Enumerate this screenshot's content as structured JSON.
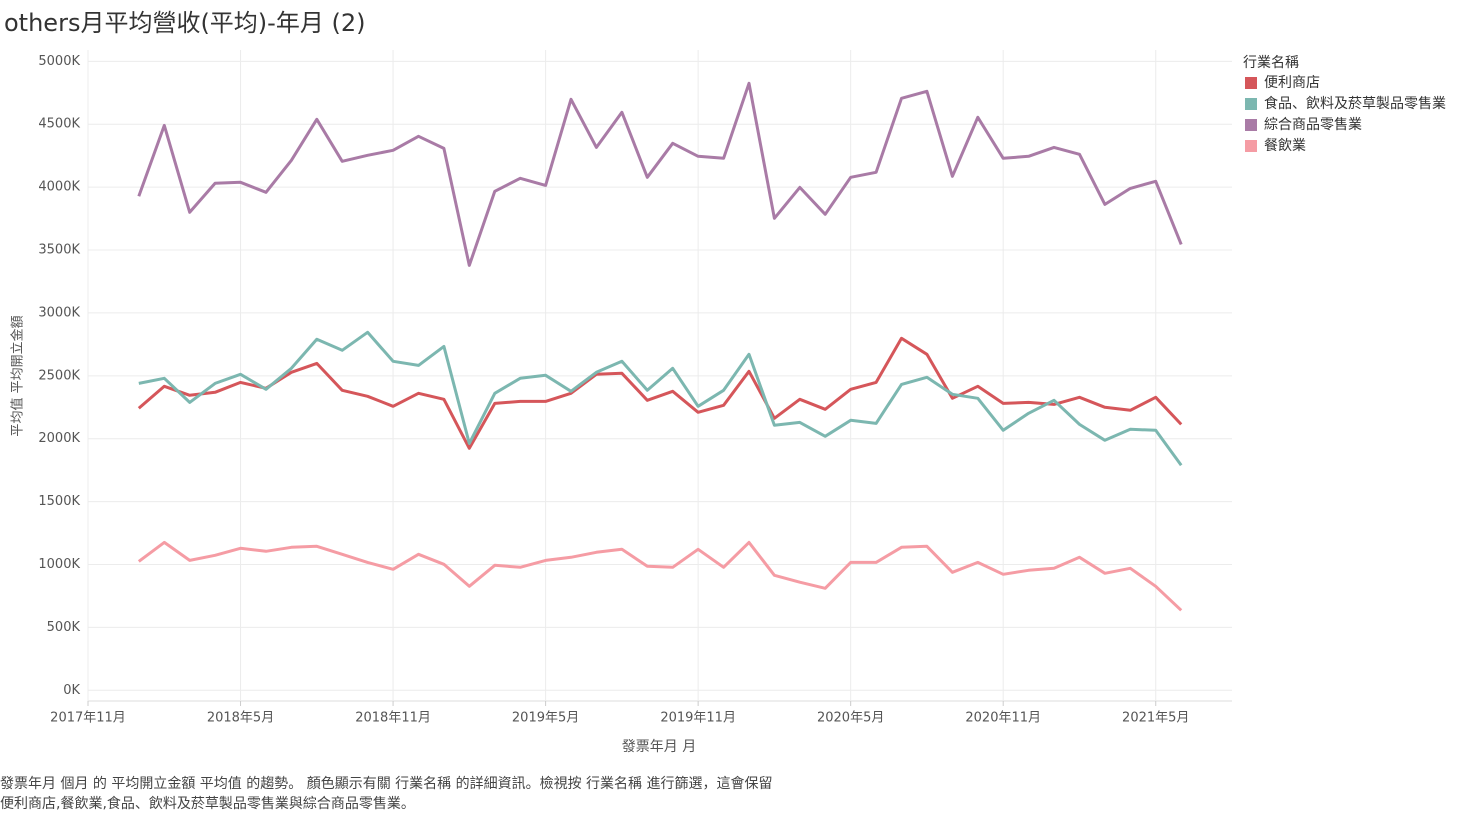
{
  "chart_data": {
    "type": "line",
    "title": "others月平均營收(平均)-年月 (2)",
    "x_label": "發票年月 月",
    "y_label": "平均值 平均開立金額",
    "legend_title": "行業名稱",
    "legend_position": "right",
    "grid": true,
    "caption": [
      "發票年月 個月 的 平均開立金額 平均值 的趨勢。 顏色顯示有關 行業名稱 的詳細資訊。檢視按 行業名稱 進行篩選，這會保留",
      "便利商店,餐飲業,食品、飲料及菸草製品零售業與綜合商品零售業。"
    ],
    "x": [
      "2018-01",
      "2018-02",
      "2018-03",
      "2018-04",
      "2018-05",
      "2018-06",
      "2018-07",
      "2018-08",
      "2018-09",
      "2018-10",
      "2018-11",
      "2018-12",
      "2019-01",
      "2019-02",
      "2019-03",
      "2019-04",
      "2019-05",
      "2019-06",
      "2019-07",
      "2019-08",
      "2019-09",
      "2019-10",
      "2019-11",
      "2019-12",
      "2020-01",
      "2020-02",
      "2020-03",
      "2020-04",
      "2020-05",
      "2020-06",
      "2020-07",
      "2020-08",
      "2020-09",
      "2020-10",
      "2020-11",
      "2020-12",
      "2021-01",
      "2021-02",
      "2021-03",
      "2021-04",
      "2021-05",
      "2021-06"
    ],
    "xlim": [
      "2017-11",
      "2021-08"
    ],
    "xticks": [
      {
        "value": "2017-11",
        "label": "2017年11月"
      },
      {
        "value": "2018-05",
        "label": "2018年5月"
      },
      {
        "value": "2018-11",
        "label": "2018年11月"
      },
      {
        "value": "2019-05",
        "label": "2019年5月"
      },
      {
        "value": "2019-11",
        "label": "2019年11月"
      },
      {
        "value": "2020-05",
        "label": "2020年5月"
      },
      {
        "value": "2020-11",
        "label": "2020年11月"
      },
      {
        "value": "2021-05",
        "label": "2021年5月"
      }
    ],
    "ylim": [
      -85,
      5090
    ],
    "yticks": [
      {
        "value": 0,
        "label": "0K"
      },
      {
        "value": 500,
        "label": "500K"
      },
      {
        "value": 1000,
        "label": "1000K"
      },
      {
        "value": 1500,
        "label": "1500K"
      },
      {
        "value": 2000,
        "label": "2000K"
      },
      {
        "value": 2500,
        "label": "2500K"
      },
      {
        "value": 3000,
        "label": "3000K"
      },
      {
        "value": 3500,
        "label": "3500K"
      },
      {
        "value": 4000,
        "label": "4000K"
      },
      {
        "value": 4500,
        "label": "4500K"
      },
      {
        "value": 5000,
        "label": "5000K"
      }
    ],
    "series": [
      {
        "name": "便利商店",
        "color": "#d5565a",
        "values": [
          2242,
          2417,
          2345,
          2369,
          2448,
          2401,
          2528,
          2599,
          2385,
          2337,
          2258,
          2361,
          2313,
          1924,
          2281,
          2297,
          2297,
          2361,
          2512,
          2520,
          2305,
          2377,
          2210,
          2266,
          2536,
          2162,
          2313,
          2234,
          2393,
          2448,
          2798,
          2671,
          2321,
          2417,
          2281,
          2289,
          2273,
          2329,
          2250,
          2226,
          2329,
          2114
        ]
      },
      {
        "name": "食品、飲料及菸草製品零售業",
        "color": "#7cb7b0",
        "values": [
          2440,
          2480,
          2289,
          2440,
          2512,
          2393,
          2560,
          2790,
          2703,
          2846,
          2615,
          2583,
          2734,
          1963,
          2361,
          2480,
          2504,
          2377,
          2528,
          2615,
          2385,
          2560,
          2258,
          2385,
          2671,
          2107,
          2130,
          2019,
          2146,
          2122,
          2432,
          2488,
          2353,
          2321,
          2067,
          2202,
          2305,
          2114,
          1987,
          2075,
          2067,
          1789
        ]
      },
      {
        "name": "綜合商品零售業",
        "color": "#a97ba6",
        "values": [
          3927,
          4491,
          3800,
          4030,
          4038,
          3959,
          4213,
          4539,
          4205,
          4253,
          4293,
          4404,
          4308,
          3378,
          3967,
          4070,
          4014,
          4698,
          4316,
          4595,
          4078,
          4348,
          4245,
          4229,
          4825,
          3752,
          3998,
          3784,
          4078,
          4118,
          4706,
          4762,
          4086,
          4555,
          4229,
          4245,
          4316,
          4261,
          3863,
          3990,
          4046,
          3545
        ]
      },
      {
        "name": "餐飲業",
        "color": "#f59ca4",
        "values": [
          1025,
          1176,
          1033,
          1073,
          1129,
          1105,
          1137,
          1145,
          1081,
          1017,
          962,
          1081,
          1002,
          827,
          994,
          978,
          1033,
          1057,
          1097,
          1121,
          986,
          978,
          1121,
          978,
          1176,
          914,
          859,
          811,
          1017,
          1017,
          1137,
          1145,
          938,
          1017,
          922,
          954,
          970,
          1057,
          930,
          970,
          827,
          636
        ]
      }
    ]
  }
}
